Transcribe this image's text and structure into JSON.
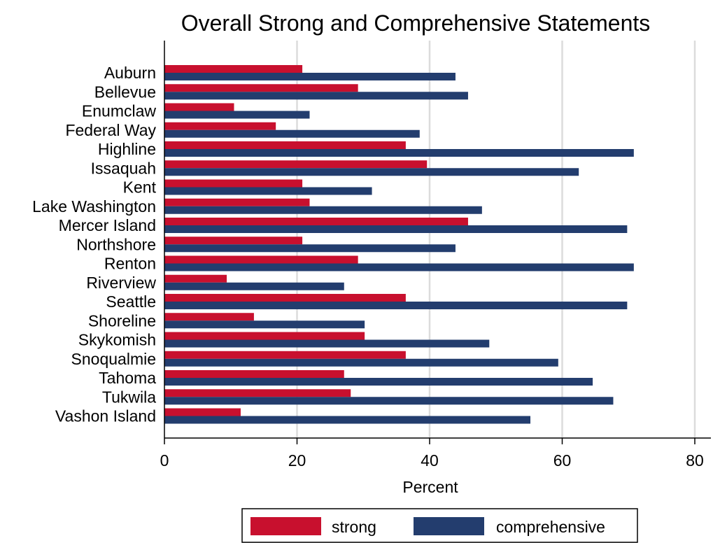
{
  "chart_data": {
    "type": "bar",
    "orientation": "horizontal",
    "title": "Overall Strong and Comprehensive Statements",
    "xlabel": "Percent",
    "ylabel": "",
    "xlim": [
      0,
      82
    ],
    "xticks": [
      0,
      20,
      40,
      60,
      80
    ],
    "grid": true,
    "legend_position": "bottom",
    "categories": [
      "Auburn",
      "Bellevue",
      "Enumclaw",
      "Federal Way",
      "Highline",
      "Issaquah",
      "Kent",
      "Lake Washington",
      "Mercer Island",
      "Northshore",
      "Renton",
      "Riverview",
      "Seattle",
      "Shoreline",
      "Skykomish",
      "Snoqualmie",
      "Tahoma",
      "Tukwila",
      "Vashon Island"
    ],
    "series": [
      {
        "name": "strong",
        "color": "#c8102e",
        "values": [
          20.8,
          29.2,
          10.5,
          16.8,
          36.4,
          39.6,
          20.8,
          21.9,
          45.8,
          20.8,
          29.2,
          9.4,
          36.4,
          13.5,
          30.2,
          36.4,
          27.1,
          28.1,
          11.5
        ]
      },
      {
        "name": "comprehensive",
        "color": "#233d6e",
        "values": [
          43.9,
          45.8,
          21.9,
          38.5,
          70.8,
          62.5,
          31.3,
          47.9,
          69.8,
          43.9,
          70.8,
          27.1,
          69.8,
          30.2,
          49.0,
          59.4,
          64.6,
          67.7,
          55.2
        ]
      }
    ]
  }
}
